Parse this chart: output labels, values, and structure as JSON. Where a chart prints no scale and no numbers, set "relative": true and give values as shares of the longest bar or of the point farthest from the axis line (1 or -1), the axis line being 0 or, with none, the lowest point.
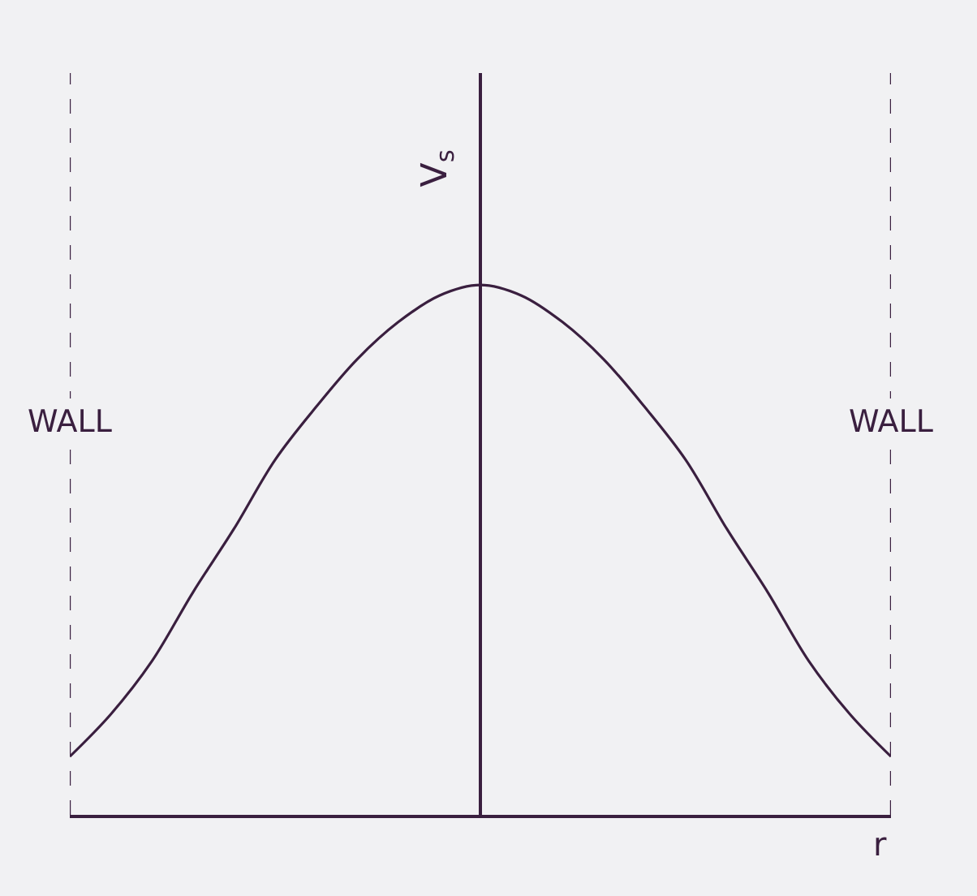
{
  "chart_data": {
    "type": "line",
    "relative": true,
    "xlabel": "r",
    "ylabel": "V$_{s}$",
    "categories": [
      null,
      null,
      null,
      null,
      null,
      null,
      null,
      null,
      null,
      null,
      null,
      null,
      null,
      null,
      null,
      null,
      null,
      null,
      null,
      null,
      null
    ],
    "series": [
      {
        "color": "#3a1f3f",
        "values": [
          0.11,
          0.19,
          0.29,
          0.42,
          0.54,
          0.67,
          0.77,
          0.86,
          0.93,
          0.98,
          1,
          0.98,
          0.93,
          0.86,
          0.77,
          0.67,
          0.54,
          0.42,
          0.29,
          0.19,
          0.11
        ]
      }
    ],
    "annotations": [
      "WALL",
      "WALL"
    ],
    "line_style": "solid",
    "marker": "none",
    "grid": false,
    "legend": false
  }
}
